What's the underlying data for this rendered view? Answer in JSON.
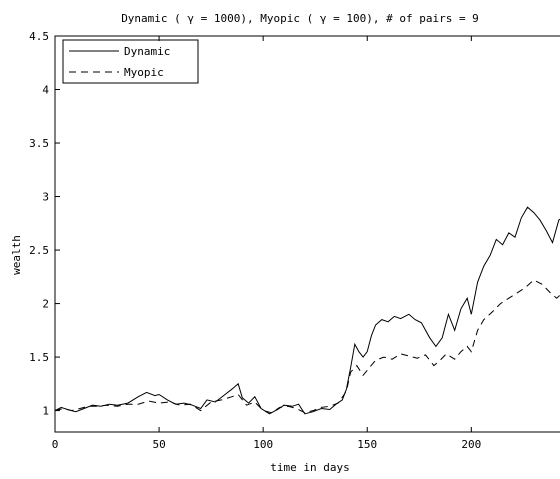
{
  "chart_data": {
    "type": "line",
    "title": "Dynamic (   γ = 1000), Myopic (   γ = 100),   # of pairs =  9",
    "xlabel": "time in days",
    "ylabel": "wealth",
    "xlim": [
      0,
      245
    ],
    "ylim": [
      0.8,
      4.5
    ],
    "x_ticks": [
      "0",
      "50",
      "100",
      "150",
      "200"
    ],
    "x_tick_values": [
      0,
      50,
      100,
      150,
      200
    ],
    "y_ticks": [
      "1",
      "1.5",
      "2",
      "2.5",
      "3",
      "3.5",
      "4",
      "4.5"
    ],
    "y_tick_values": [
      1,
      1.5,
      2,
      2.5,
      3,
      3.5,
      4,
      4.5
    ],
    "grid": false,
    "legend_position": "top-left",
    "series": [
      {
        "name": "Dynamic",
        "style": "solid",
        "color": "#000000",
        "points": [
          [
            0,
            1.0
          ],
          [
            3,
            1.03
          ],
          [
            6,
            1.01
          ],
          [
            10,
            0.99
          ],
          [
            14,
            1.02
          ],
          [
            18,
            1.05
          ],
          [
            22,
            1.04
          ],
          [
            26,
            1.06
          ],
          [
            30,
            1.05
          ],
          [
            35,
            1.07
          ],
          [
            40,
            1.13
          ],
          [
            44,
            1.17
          ],
          [
            48,
            1.14
          ],
          [
            50,
            1.15
          ],
          [
            54,
            1.1
          ],
          [
            58,
            1.06
          ],
          [
            62,
            1.07
          ],
          [
            66,
            1.05
          ],
          [
            70,
            1.02
          ],
          [
            73,
            1.1
          ],
          [
            77,
            1.08
          ],
          [
            81,
            1.14
          ],
          [
            85,
            1.2
          ],
          [
            88,
            1.25
          ],
          [
            90,
            1.12
          ],
          [
            93,
            1.07
          ],
          [
            96,
            1.13
          ],
          [
            99,
            1.02
          ],
          [
            103,
            0.97
          ],
          [
            107,
            1.01
          ],
          [
            110,
            1.05
          ],
          [
            114,
            1.04
          ],
          [
            117,
            1.06
          ],
          [
            120,
            0.97
          ],
          [
            124,
            0.99
          ],
          [
            128,
            1.02
          ],
          [
            132,
            1.01
          ],
          [
            135,
            1.06
          ],
          [
            138,
            1.1
          ],
          [
            140,
            1.2
          ],
          [
            142,
            1.4
          ],
          [
            144,
            1.62
          ],
          [
            146,
            1.55
          ],
          [
            148,
            1.5
          ],
          [
            150,
            1.55
          ],
          [
            152,
            1.7
          ],
          [
            154,
            1.8
          ],
          [
            157,
            1.85
          ],
          [
            160,
            1.83
          ],
          [
            163,
            1.88
          ],
          [
            166,
            1.86
          ],
          [
            170,
            1.9
          ],
          [
            173,
            1.85
          ],
          [
            176,
            1.82
          ],
          [
            180,
            1.68
          ],
          [
            183,
            1.6
          ],
          [
            186,
            1.68
          ],
          [
            189,
            1.9
          ],
          [
            192,
            1.75
          ],
          [
            195,
            1.95
          ],
          [
            198,
            2.05
          ],
          [
            200,
            1.9
          ],
          [
            203,
            2.2
          ],
          [
            206,
            2.35
          ],
          [
            209,
            2.45
          ],
          [
            212,
            2.6
          ],
          [
            215,
            2.55
          ],
          [
            218,
            2.66
          ],
          [
            221,
            2.62
          ],
          [
            224,
            2.8
          ],
          [
            227,
            2.9
          ],
          [
            230,
            2.85
          ],
          [
            233,
            2.78
          ],
          [
            236,
            2.68
          ],
          [
            239,
            2.57
          ],
          [
            242,
            2.78
          ],
          [
            245,
            2.82
          ]
        ]
      },
      {
        "name": "Myopic",
        "style": "dashed",
        "color": "#000000",
        "points": [
          [
            0,
            1.0
          ],
          [
            4,
            1.02
          ],
          [
            8,
            1.0
          ],
          [
            12,
            1.02
          ],
          [
            16,
            1.04
          ],
          [
            20,
            1.04
          ],
          [
            25,
            1.05
          ],
          [
            30,
            1.04
          ],
          [
            35,
            1.06
          ],
          [
            40,
            1.06
          ],
          [
            45,
            1.09
          ],
          [
            50,
            1.07
          ],
          [
            55,
            1.08
          ],
          [
            60,
            1.05
          ],
          [
            65,
            1.06
          ],
          [
            70,
            1.0
          ],
          [
            75,
            1.08
          ],
          [
            80,
            1.1
          ],
          [
            85,
            1.13
          ],
          [
            88,
            1.15
          ],
          [
            92,
            1.05
          ],
          [
            96,
            1.08
          ],
          [
            100,
            1.0
          ],
          [
            104,
            0.98
          ],
          [
            108,
            1.03
          ],
          [
            112,
            1.04
          ],
          [
            116,
            1.02
          ],
          [
            120,
            0.98
          ],
          [
            124,
            1.0
          ],
          [
            128,
            1.03
          ],
          [
            132,
            1.04
          ],
          [
            136,
            1.07
          ],
          [
            140,
            1.18
          ],
          [
            142,
            1.36
          ],
          [
            145,
            1.42
          ],
          [
            148,
            1.33
          ],
          [
            151,
            1.4
          ],
          [
            154,
            1.47
          ],
          [
            158,
            1.5
          ],
          [
            162,
            1.48
          ],
          [
            166,
            1.53
          ],
          [
            170,
            1.51
          ],
          [
            174,
            1.49
          ],
          [
            178,
            1.52
          ],
          [
            182,
            1.42
          ],
          [
            185,
            1.47
          ],
          [
            188,
            1.53
          ],
          [
            192,
            1.48
          ],
          [
            195,
            1.55
          ],
          [
            198,
            1.6
          ],
          [
            200,
            1.55
          ],
          [
            203,
            1.75
          ],
          [
            206,
            1.85
          ],
          [
            210,
            1.92
          ],
          [
            214,
            2.0
          ],
          [
            218,
            2.05
          ],
          [
            222,
            2.1
          ],
          [
            226,
            2.15
          ],
          [
            230,
            2.22
          ],
          [
            234,
            2.18
          ],
          [
            238,
            2.1
          ],
          [
            241,
            2.05
          ],
          [
            245,
            2.12
          ]
        ]
      }
    ]
  }
}
